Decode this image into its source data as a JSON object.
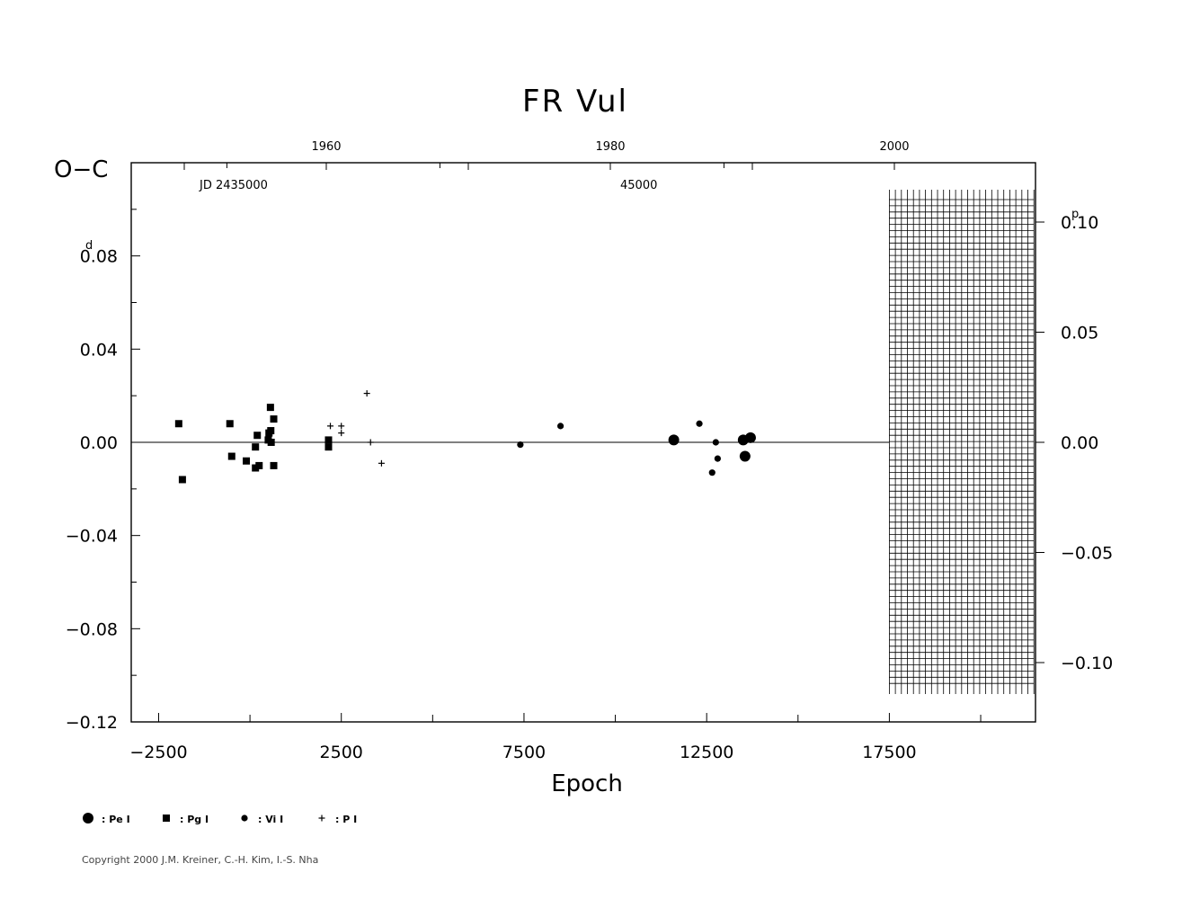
{
  "chart_data": {
    "type": "scatter",
    "title": "FR  Vul",
    "ylabel": "O−C",
    "xlabel": "Epoch",
    "ylabel_unit": "d",
    "right_axis_unit": "p",
    "jd_label_left": "JD  2435000",
    "jd_label_right": "45000",
    "xlim": [
      -3250,
      21500
    ],
    "ylim": [
      -0.12,
      0.12
    ],
    "x_ticks": [
      -2500,
      2500,
      7500,
      12500,
      17500
    ],
    "x_tick_labels": [
      "−2500",
      "2500",
      "7500",
      "12500",
      "17500"
    ],
    "y_ticks": [
      0.08,
      0.04,
      0.0,
      -0.04,
      -0.08,
      -0.12
    ],
    "y_tick_labels": [
      "0.08",
      "0.04",
      "0.00",
      "−0.04",
      "−0.08",
      "−0.12"
    ],
    "top_year_ticks": [
      1960,
      1980,
      2000
    ],
    "top_year_labels": [
      "1960",
      "1980",
      "2000"
    ],
    "right_ticks": [
      0.1,
      0.05,
      0.0,
      -0.05,
      -0.1
    ],
    "right_tick_labels": [
      "0.10",
      "0.05",
      "0.00",
      "−0.05",
      "−0.10"
    ],
    "hatched_region_x": [
      17500,
      21500
    ],
    "series": [
      {
        "name": ": Pe I",
        "marker": "circle-large",
        "points": [
          {
            "x": 11600,
            "y": 0.001
          },
          {
            "x": 13550,
            "y": -0.006
          },
          {
            "x": 13700,
            "y": 0.002
          },
          {
            "x": 13500,
            "y": 0.001
          }
        ]
      },
      {
        "name": ": Pg I",
        "marker": "square",
        "points": [
          {
            "x": -1950,
            "y": 0.008
          },
          {
            "x": -1850,
            "y": -0.016
          },
          {
            "x": -550,
            "y": 0.008
          },
          {
            "x": -500,
            "y": -0.006
          },
          {
            "x": -100,
            "y": -0.008
          },
          {
            "x": 150,
            "y": -0.002
          },
          {
            "x": 200,
            "y": 0.003
          },
          {
            "x": 150,
            "y": -0.011
          },
          {
            "x": 250,
            "y": -0.01
          },
          {
            "x": 500,
            "y": 0.001
          },
          {
            "x": 520,
            "y": 0.004
          },
          {
            "x": 560,
            "y": 0.015
          },
          {
            "x": 570,
            "y": 0.005
          },
          {
            "x": 580,
            "y": 0.0
          },
          {
            "x": 650,
            "y": 0.01
          },
          {
            "x": 650,
            "y": -0.01
          },
          {
            "x": 2150,
            "y": 0.001
          },
          {
            "x": 2150,
            "y": -0.002
          }
        ]
      },
      {
        "name": ": Vi I",
        "marker": "dot",
        "points": [
          {
            "x": 7400,
            "y": -0.001
          },
          {
            "x": 8500,
            "y": 0.007
          },
          {
            "x": 12300,
            "y": 0.008
          },
          {
            "x": 12650,
            "y": -0.013
          },
          {
            "x": 12750,
            "y": 0.0
          },
          {
            "x": 12800,
            "y": -0.007
          }
        ]
      },
      {
        "name": ": P I",
        "marker": "plus",
        "points": [
          {
            "x": 2200,
            "y": 0.007
          },
          {
            "x": 2500,
            "y": 0.007
          },
          {
            "x": 2500,
            "y": 0.004
          },
          {
            "x": 3200,
            "y": 0.021
          },
          {
            "x": 3300,
            "y": 0.0
          },
          {
            "x": 3600,
            "y": -0.009
          }
        ]
      }
    ]
  },
  "copyright": "Copyright 2000 J.M. Kreiner, C.-H. Kim, I.-S. Nha"
}
